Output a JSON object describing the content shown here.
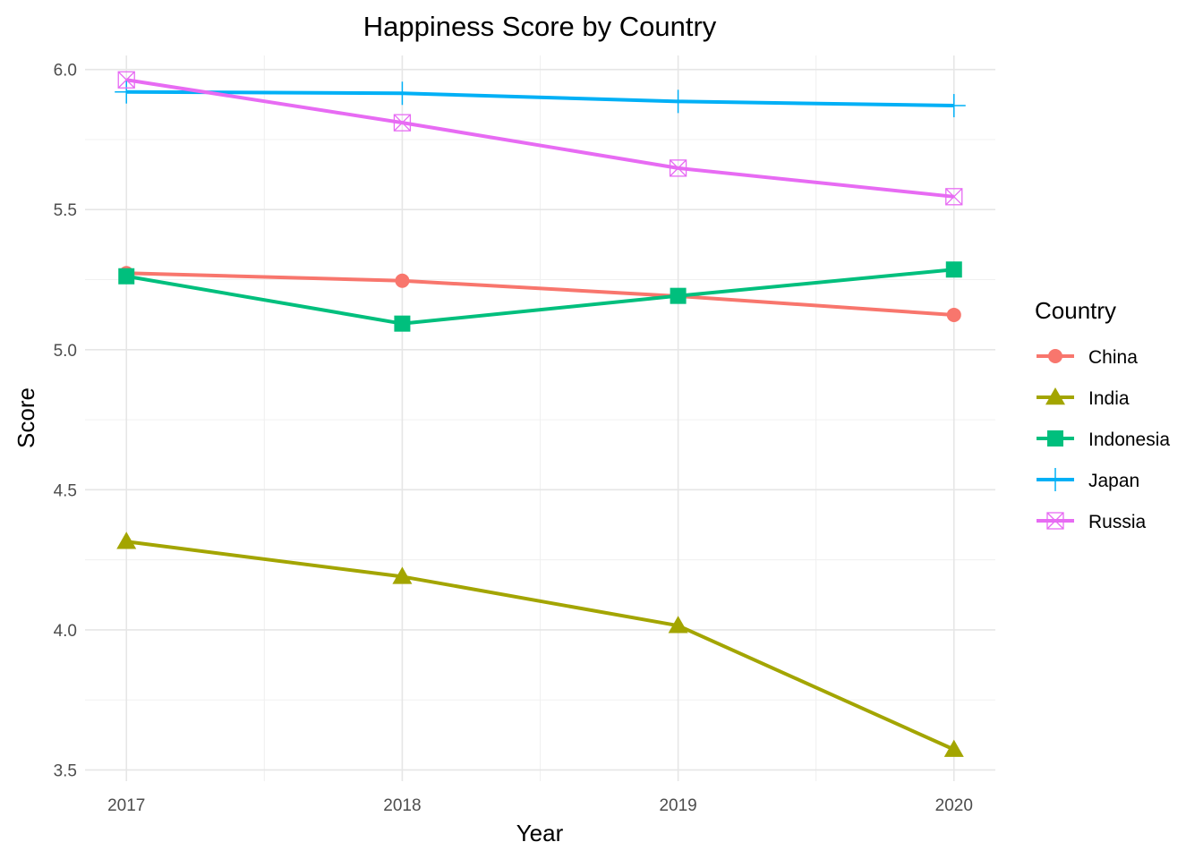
{
  "chart_data": {
    "type": "line",
    "title": "Happiness Score by Country",
    "xlabel": "Year",
    "ylabel": "Score",
    "x": [
      2017,
      2018,
      2019,
      2020
    ],
    "x_tick_labels": [
      "2017",
      "2018",
      "2019",
      "2020"
    ],
    "ylim": [
      3.46,
      6.05
    ],
    "y_ticks": [
      3.5,
      4.0,
      4.5,
      5.0,
      5.5,
      6.0
    ],
    "y_tick_labels": [
      "3.5",
      "4.0",
      "4.5",
      "5.0",
      "5.5",
      "6.0"
    ],
    "grid": true,
    "legend": {
      "title": "Country",
      "position": "right"
    },
    "series": [
      {
        "name": "China",
        "color": "#F8766D",
        "marker": "circle",
        "values": [
          5.273,
          5.246,
          5.191,
          5.124
        ]
      },
      {
        "name": "India",
        "color": "#A3A500",
        "marker": "triangle",
        "values": [
          4.315,
          4.19,
          4.015,
          3.573
        ]
      },
      {
        "name": "Indonesia",
        "color": "#00BF7D",
        "marker": "square",
        "values": [
          5.262,
          5.093,
          5.192,
          5.286
        ]
      },
      {
        "name": "Japan",
        "color": "#00B0F6",
        "marker": "plus",
        "values": [
          5.92,
          5.915,
          5.886,
          5.871
        ]
      },
      {
        "name": "Russia",
        "color": "#E76BF3",
        "marker": "square-x",
        "values": [
          5.963,
          5.81,
          5.648,
          5.546
        ]
      }
    ]
  }
}
